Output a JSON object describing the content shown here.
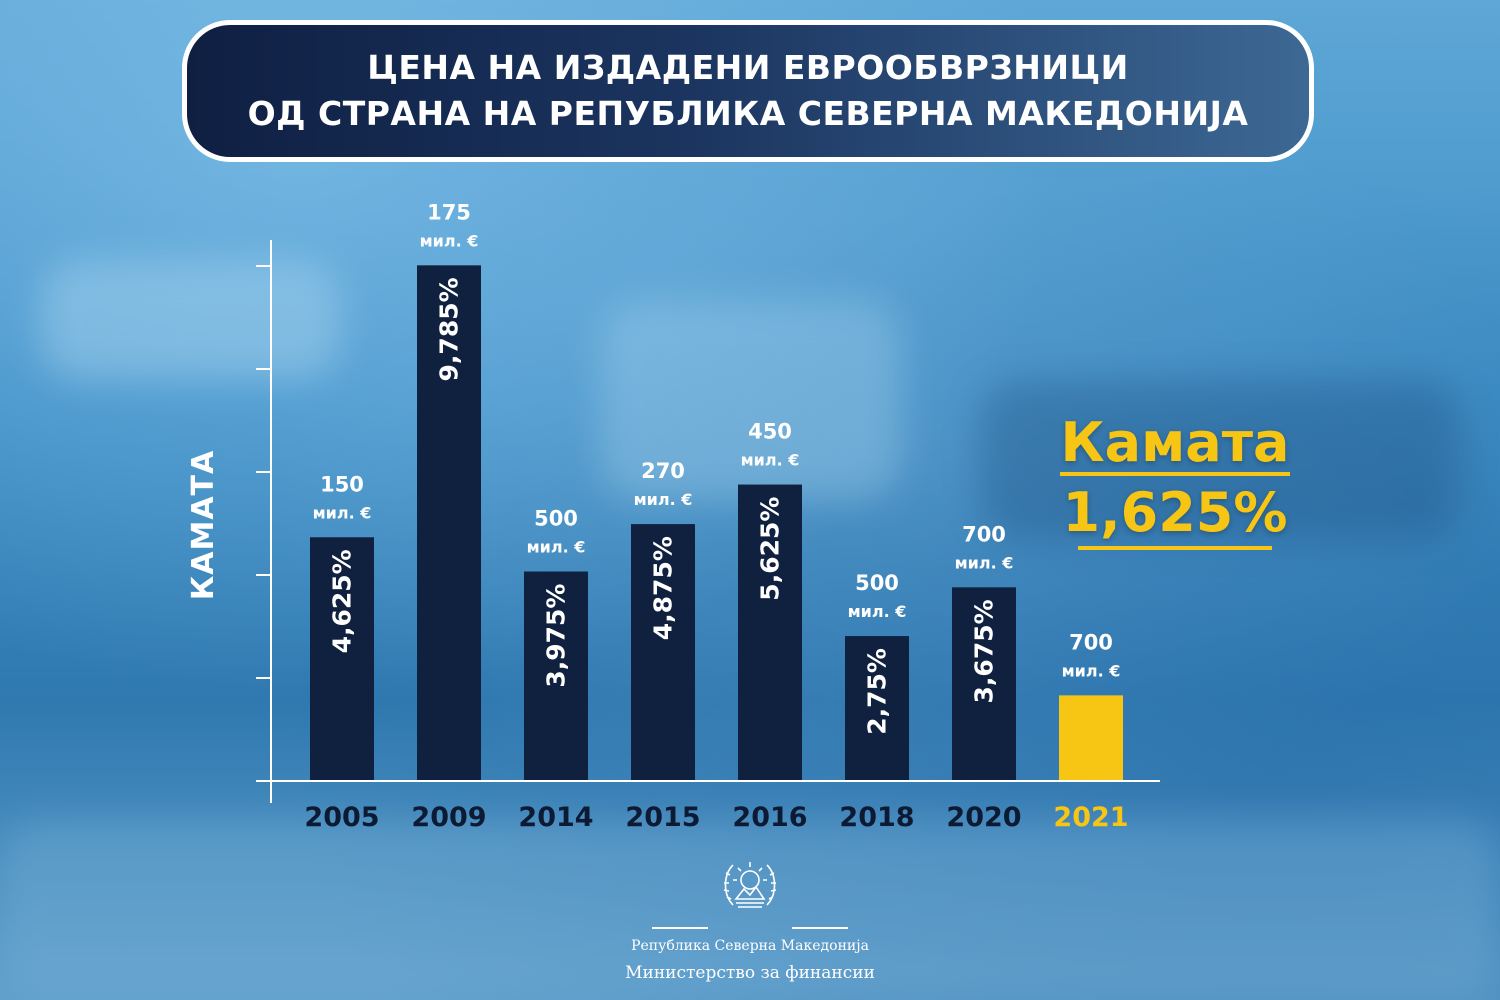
{
  "header": {
    "title_line1": "ЦЕНА НА ИЗДАДЕНИ ЕВРООБВРЗНИЦИ",
    "title_line2": "ОД СТРАНА НА РЕПУБЛИКА СЕВЕРНА МАКЕДОНИЈА"
  },
  "highlight": {
    "label": "Камата",
    "value": "1,625%"
  },
  "footer": {
    "country": "Република Северна Македонија",
    "ministry": "Министерство за финансии"
  },
  "colors": {
    "bar": "#10213f",
    "highlight": "#f7c614",
    "axis": "#ffffff",
    "category_text": "#0d1a33"
  },
  "chart_data": {
    "type": "bar",
    "title": "",
    "xlabel": "",
    "ylabel": "КАМАТА",
    "ylim": [
      0,
      10
    ],
    "grid": false,
    "categories": [
      "2005",
      "2009",
      "2014",
      "2015",
      "2016",
      "2018",
      "2020",
      "2021"
    ],
    "values": [
      4.625,
      9.785,
      3.975,
      4.875,
      5.625,
      2.75,
      3.675,
      1.625
    ],
    "bar_labels": [
      "4,625%",
      "9,785%",
      "3,975%",
      "4,875%",
      "5,625%",
      "2,75%",
      "3,675%",
      ""
    ],
    "amounts": [
      "150",
      "175",
      "500",
      "270",
      "450",
      "500",
      "700",
      "700"
    ],
    "amount_unit": "мил. €",
    "highlighted_category": "2021"
  }
}
